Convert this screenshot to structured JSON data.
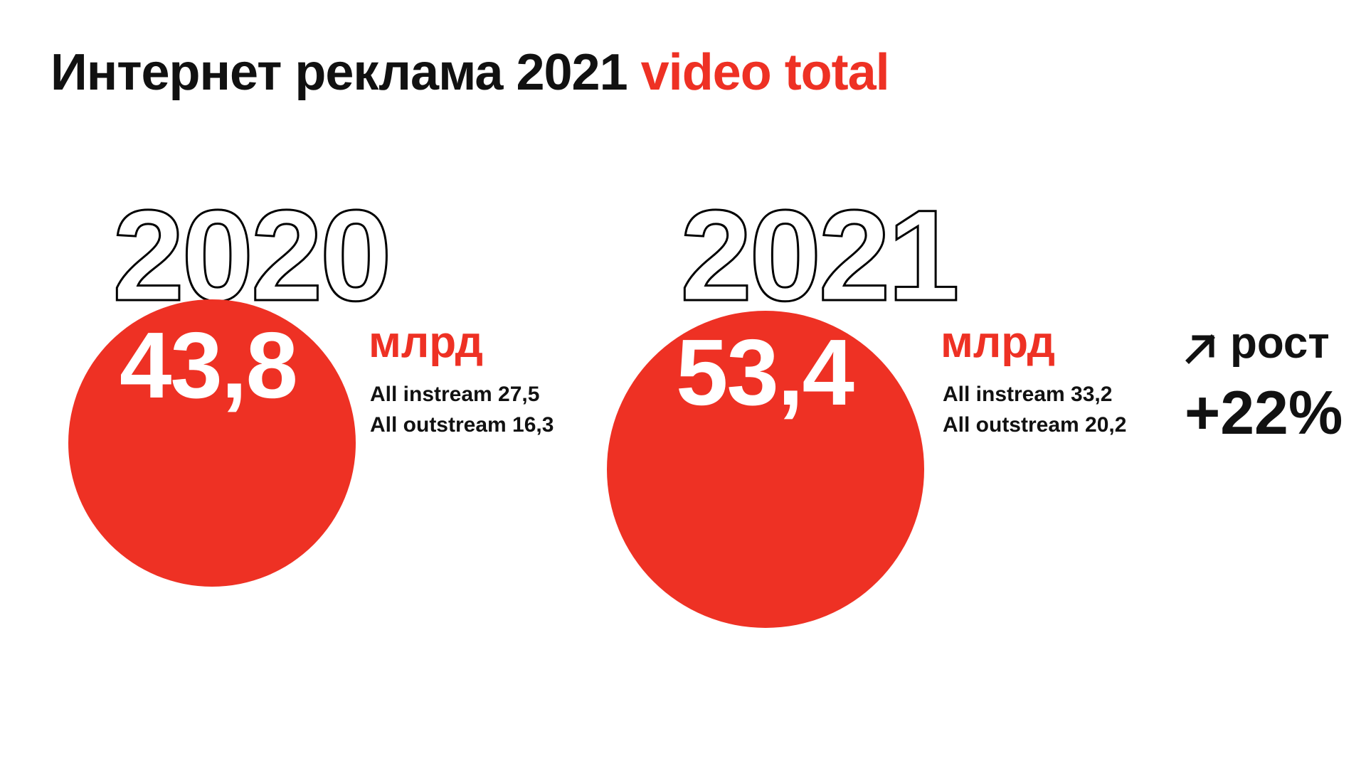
{
  "title": {
    "main": "Интернет реклама 2021",
    "accent": "video total"
  },
  "colors": {
    "accent": "#ee3124",
    "text": "#111111",
    "background": "#ffffff"
  },
  "chart_data": {
    "type": "bubble",
    "title": "Интернет реклама 2021 video total",
    "unit": "млрд",
    "series": [
      {
        "year": "2020",
        "value_label": "43,8",
        "value": 43.8,
        "breakdown": [
          {
            "text": "All instream 27,5",
            "value": 27.5
          },
          {
            "text": "All outstream 16,3",
            "value": 16.3
          }
        ]
      },
      {
        "year": "2021",
        "value_label": "53,4",
        "value": 53.4,
        "breakdown": [
          {
            "text": "All instream 33,2",
            "value": 33.2
          },
          {
            "text": "All outstream 20,2",
            "value": 20.2
          }
        ]
      }
    ],
    "growth": {
      "label": "рост",
      "value_label": "+22%",
      "value": 22,
      "icon": "arrow-up-right-icon"
    }
  }
}
